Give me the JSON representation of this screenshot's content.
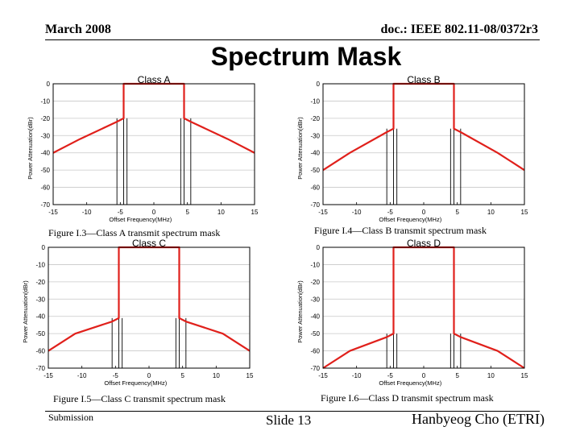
{
  "header": {
    "date": "March 2008",
    "doc": "doc.: IEEE 802.11-08/0372r3"
  },
  "slide_title": "Spectrum Mask",
  "footer": {
    "left": "Submission",
    "center": "Slide 13",
    "right": "Hanbyeog Cho (ETRI)"
  },
  "colors": {
    "mask": "#e0201b",
    "grid": "#c8c8c8",
    "frame": "#000000"
  },
  "chart_data": [
    {
      "type": "line",
      "title": "Class A",
      "xlabel": "Offset Frequency(MHz)",
      "ylabel": "Power Attenuation(dBr)",
      "xlim": [
        -15,
        15
      ],
      "ylim": [
        -70,
        0
      ],
      "xticks": [
        "-15",
        "-10",
        "-5",
        "0",
        "5",
        "10",
        "15"
      ],
      "yticks": [
        "0",
        "-10",
        "-20",
        "-30",
        "-40",
        "-50",
        "-60",
        "-70"
      ],
      "caption": "Figure I.3—Class A transmit spectrum mask",
      "mask": {
        "x": [
          -15,
          -11,
          -5.5,
          -4.5,
          -4.5,
          4.5,
          4.5,
          5.5,
          11,
          15
        ],
        "y": [
          -40,
          -32,
          -22,
          -20,
          0,
          0,
          -20,
          -22,
          -32,
          -40
        ]
      }
    },
    {
      "type": "line",
      "title": "Class B",
      "xlabel": "Offset Frequency(MHz)",
      "ylabel": "Power Attenuation(dBr)",
      "xlim": [
        -15,
        15
      ],
      "ylim": [
        -70,
        0
      ],
      "xticks": [
        "-15",
        "-10",
        "-5",
        "0",
        "5",
        "10",
        "15"
      ],
      "yticks": [
        "0",
        "-10",
        "-20",
        "-30",
        "-40",
        "-50",
        "-60",
        "-70"
      ],
      "caption": "Figure I.4—Class B transmit spectrum mask",
      "mask": {
        "x": [
          -15,
          -11,
          -5.5,
          -4.5,
          -4.5,
          4.5,
          4.5,
          5.5,
          11,
          15
        ],
        "y": [
          -50,
          -40,
          -28,
          -26,
          0,
          0,
          -26,
          -28,
          -40,
          -50
        ]
      }
    },
    {
      "type": "line",
      "title": "Class C",
      "xlabel": "Offset Frequency(MHz)",
      "ylabel": "Power Attenuation(dBr)",
      "xlim": [
        -15,
        15
      ],
      "ylim": [
        -70,
        0
      ],
      "xticks": [
        "-15",
        "-10",
        "-5",
        "0",
        "5",
        "10",
        "15"
      ],
      "yticks": [
        "0",
        "-10",
        "-20",
        "-30",
        "-40",
        "-50",
        "-60",
        "-70"
      ],
      "caption": "Figure I.5—Class C transmit spectrum mask",
      "mask": {
        "x": [
          -15,
          -11,
          -5.5,
          -4.5,
          -4.5,
          4.5,
          4.5,
          5.5,
          11,
          15
        ],
        "y": [
          -60,
          -50,
          -43,
          -41,
          0,
          0,
          -41,
          -43,
          -50,
          -60
        ]
      }
    },
    {
      "type": "line",
      "title": "Class D",
      "xlabel": "Offset Frequency(MHz)",
      "ylabel": "Power Attenuation(dBr)",
      "xlim": [
        -15,
        15
      ],
      "ylim": [
        -70,
        0
      ],
      "xticks": [
        "-15",
        "-10",
        "-5",
        "0",
        "5",
        "10",
        "15"
      ],
      "yticks": [
        "0",
        "-10",
        "-20",
        "-30",
        "-40",
        "-50",
        "-60",
        "-70"
      ],
      "caption": "Figure I.6—Class D transmit spectrum mask",
      "mask": {
        "x": [
          -15,
          -11,
          -5.5,
          -4.5,
          -4.5,
          4.5,
          4.5,
          5.5,
          11,
          15
        ],
        "y": [
          -70,
          -60,
          -52,
          -50,
          0,
          0,
          -50,
          -52,
          -60,
          -70
        ]
      }
    }
  ]
}
